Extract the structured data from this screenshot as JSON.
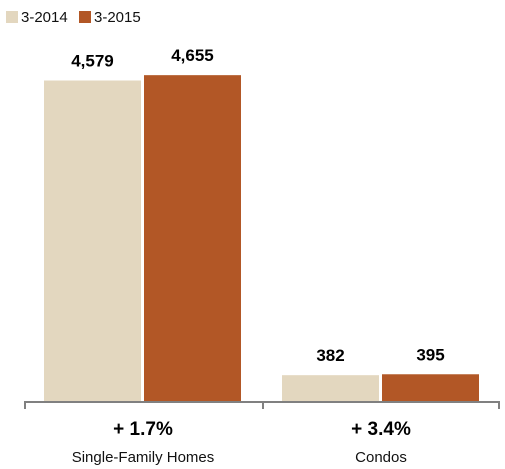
{
  "chart_data": {
    "type": "bar",
    "categories": [
      "Single-Family Homes",
      "Condos"
    ],
    "category_changes": [
      "+ 1.7%",
      "+ 3.4%"
    ],
    "series": [
      {
        "name": "3-2014",
        "values": [
          4579,
          382
        ],
        "value_labels": [
          "4,579",
          "382"
        ],
        "color": "#e3d7bf"
      },
      {
        "name": "3-2015",
        "values": [
          4655,
          395
        ],
        "value_labels": [
          "4,655",
          "395"
        ],
        "color": "#b25726"
      }
    ],
    "ylim": [
      0,
      4700
    ],
    "legend_position": "top-left",
    "grid": false
  }
}
